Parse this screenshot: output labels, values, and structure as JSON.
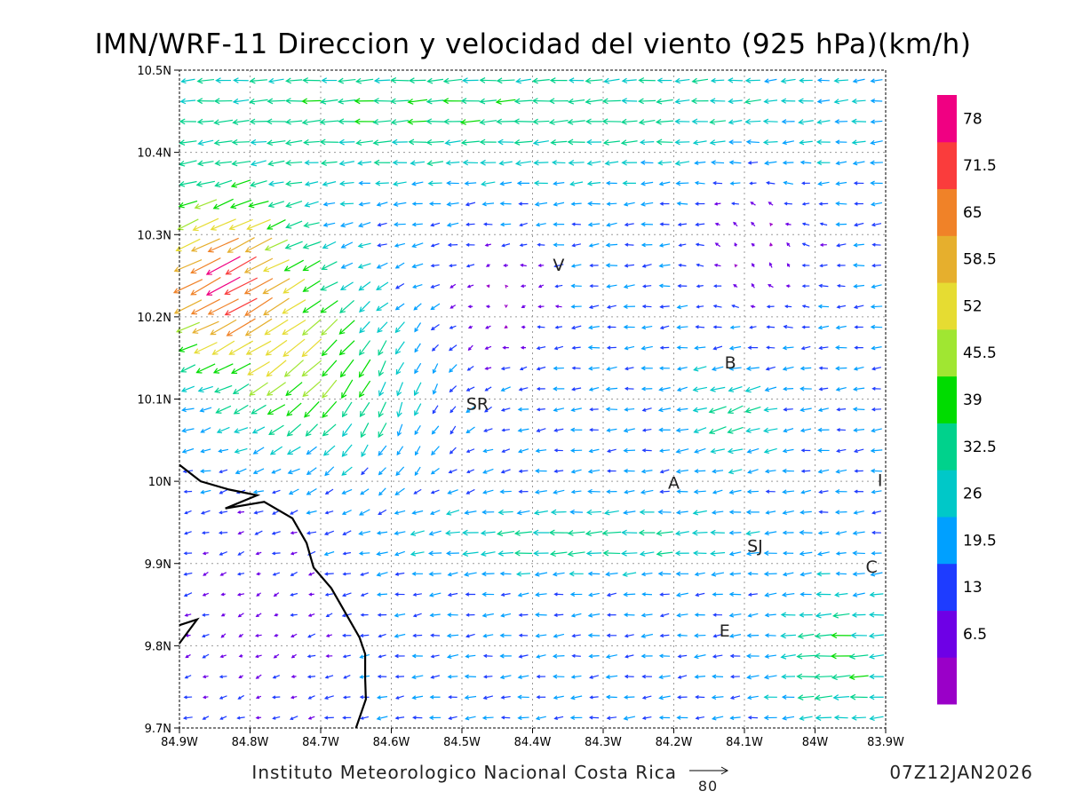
{
  "title": "IMN/WRF-11 Direccion y velocidad del viento (925 hPa)(km/h)",
  "credit": "Instituto Meteorologico Nacional Costa Rica",
  "valid_time": "07Z12JAN2026",
  "reference_vector": {
    "label": "80",
    "speed_kmh": 80
  },
  "axes": {
    "lon_range": [
      -84.9,
      -83.9
    ],
    "lat_range": [
      9.7,
      10.5
    ],
    "lon_ticks": [
      {
        "value": -84.9,
        "label": "84.9W"
      },
      {
        "value": -84.8,
        "label": "84.8W"
      },
      {
        "value": -84.7,
        "label": "84.7W"
      },
      {
        "value": -84.6,
        "label": "84.6W"
      },
      {
        "value": -84.5,
        "label": "84.5W"
      },
      {
        "value": -84.4,
        "label": "84.4W"
      },
      {
        "value": -84.3,
        "label": "84.3W"
      },
      {
        "value": -84.2,
        "label": "84.2W"
      },
      {
        "value": -84.1,
        "label": "84.1W"
      },
      {
        "value": -84.0,
        "label": "84W"
      },
      {
        "value": -83.9,
        "label": "83.9W"
      }
    ],
    "lat_ticks": [
      {
        "value": 9.7,
        "label": "9.7N"
      },
      {
        "value": 9.8,
        "label": "9.8N"
      },
      {
        "value": 9.9,
        "label": "9.9N"
      },
      {
        "value": 10.0,
        "label": "10N"
      },
      {
        "value": 10.1,
        "label": "10.1N"
      },
      {
        "value": 10.2,
        "label": "10.2N"
      },
      {
        "value": 10.3,
        "label": "10.3N"
      },
      {
        "value": 10.4,
        "label": "10.4N"
      },
      {
        "value": 10.5,
        "label": "10.5N"
      }
    ],
    "grid": true
  },
  "colorbar": {
    "colors": [
      "#9a00c8",
      "#6e00e6",
      "#1e3cff",
      "#00a0ff",
      "#00c8c8",
      "#00d28c",
      "#00dc00",
      "#a0e632",
      "#e6dc32",
      "#e6af2d",
      "#f08228",
      "#fa3c3c",
      "#f00082"
    ],
    "labels": [
      "6.5",
      "13",
      "19.5",
      "26",
      "32.5",
      "39",
      "45.5",
      "52",
      "58.5",
      "65",
      "71.5",
      "78"
    ]
  },
  "cities": [
    {
      "label": "V",
      "lon": -84.363,
      "lat": 10.262
    },
    {
      "label": "SR",
      "lon": -84.478,
      "lat": 10.093
    },
    {
      "label": "B",
      "lon": -84.12,
      "lat": 10.143
    },
    {
      "label": "A",
      "lon": -84.2,
      "lat": 9.997
    },
    {
      "label": "SJ",
      "lon": -84.085,
      "lat": 9.92
    },
    {
      "label": "C",
      "lon": -83.92,
      "lat": 9.895
    },
    {
      "label": "E",
      "lon": -84.128,
      "lat": 9.817
    },
    {
      "label": "I",
      "lon": -83.908,
      "lat": 10.0
    }
  ],
  "coastline": [
    [
      {
        "lon": -84.9,
        "lat": 10.02
      },
      {
        "lon": -84.87,
        "lat": 10.0
      },
      {
        "lon": -84.83,
        "lat": 9.99
      },
      {
        "lon": -84.79,
        "lat": 9.983
      },
      {
        "lon": -84.835,
        "lat": 9.967
      },
      {
        "lon": -84.78,
        "lat": 9.975
      },
      {
        "lon": -84.74,
        "lat": 9.955
      },
      {
        "lon": -84.72,
        "lat": 9.925
      },
      {
        "lon": -84.71,
        "lat": 9.895
      },
      {
        "lon": -84.685,
        "lat": 9.87
      },
      {
        "lon": -84.665,
        "lat": 9.84
      },
      {
        "lon": -84.645,
        "lat": 9.81
      },
      {
        "lon": -84.637,
        "lat": 9.79
      },
      {
        "lon": -84.637,
        "lat": 9.76
      },
      {
        "lon": -84.636,
        "lat": 9.735
      },
      {
        "lon": -84.65,
        "lat": 9.7
      }
    ],
    [
      {
        "lon": -84.9,
        "lat": 9.825
      },
      {
        "lon": -84.875,
        "lat": 9.832
      },
      {
        "lon": -84.9,
        "lat": 9.803
      }
    ]
  ],
  "wind_field": {
    "grid_spacing_deg": 0.025,
    "sample_vectors": [
      {
        "lon": -84.88,
        "lat": 10.48,
        "u": -40,
        "v": -5
      },
      {
        "lon": -84.5,
        "lat": 10.45,
        "u": -33,
        "v": 0
      },
      {
        "lon": -84.82,
        "lat": 10.25,
        "u": -60,
        "v": -40
      },
      {
        "lon": -84.45,
        "lat": 10.25,
        "u": -2,
        "v": -10
      },
      {
        "lon": -84.5,
        "lat": 10.15,
        "u": 0,
        "v": -38
      },
      {
        "lon": -84.15,
        "lat": 10.1,
        "u": -38,
        "v": -25
      },
      {
        "lon": -84.4,
        "lat": 9.93,
        "u": -40,
        "v": -8
      },
      {
        "lon": -84.8,
        "lat": 9.8,
        "u": -6,
        "v": -6
      },
      {
        "lon": -83.97,
        "lat": 9.78,
        "u": -45,
        "v": 3
      }
    ]
  }
}
